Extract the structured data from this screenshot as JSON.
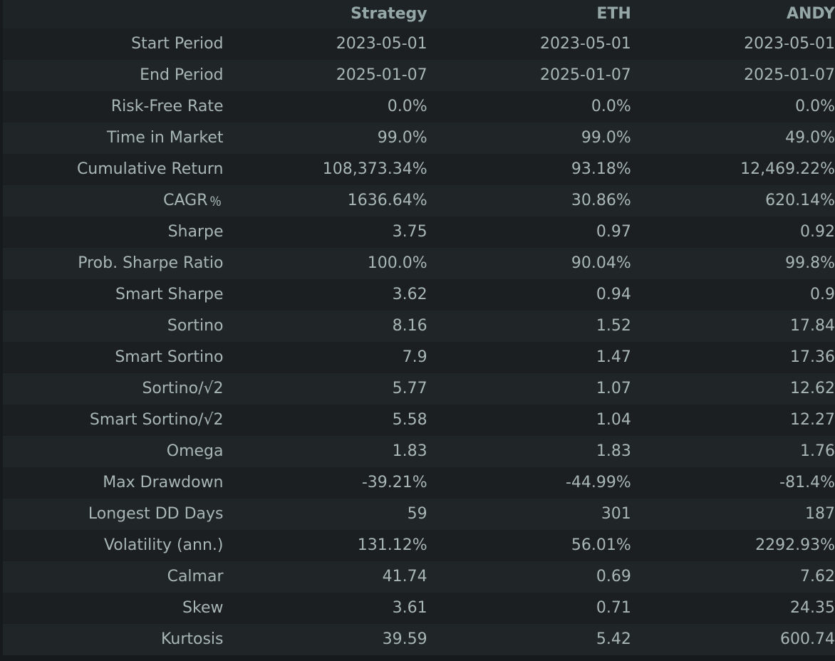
{
  "table": {
    "columns": [
      "",
      "Strategy",
      "ETH",
      "ANDY"
    ],
    "rows": [
      {
        "label": "Start Period",
        "values": [
          "2023-05-01",
          "2023-05-01",
          "2023-05-01"
        ]
      },
      {
        "label": "End Period",
        "values": [
          "2025-01-07",
          "2025-01-07",
          "2025-01-07"
        ]
      },
      {
        "label": "Risk-Free Rate",
        "values": [
          "0.0%",
          "0.0%",
          "0.0%"
        ]
      },
      {
        "label": "Time in Market",
        "values": [
          "99.0%",
          "99.0%",
          "49.0%"
        ]
      },
      {
        "label": "Cumulative Return",
        "values": [
          "108,373.34%",
          "93.18%",
          "12,469.22%"
        ]
      },
      {
        "label": "CAGR﹪",
        "values": [
          "1636.64%",
          "30.86%",
          "620.14%"
        ]
      },
      {
        "label": "Sharpe",
        "values": [
          "3.75",
          "0.97",
          "0.92"
        ]
      },
      {
        "label": "Prob. Sharpe Ratio",
        "values": [
          "100.0%",
          "90.04%",
          "99.8%"
        ]
      },
      {
        "label": "Smart Sharpe",
        "values": [
          "3.62",
          "0.94",
          "0.9"
        ]
      },
      {
        "label": "Sortino",
        "values": [
          "8.16",
          "1.52",
          "17.84"
        ]
      },
      {
        "label": "Smart Sortino",
        "values": [
          "7.9",
          "1.47",
          "17.36"
        ]
      },
      {
        "label": "Sortino/√2",
        "values": [
          "5.77",
          "1.07",
          "12.62"
        ]
      },
      {
        "label": "Smart Sortino/√2",
        "values": [
          "5.58",
          "1.04",
          "12.27"
        ]
      },
      {
        "label": "Omega",
        "values": [
          "1.83",
          "1.83",
          "1.76"
        ]
      },
      {
        "label": "Max Drawdown",
        "values": [
          "-39.21%",
          "-44.99%",
          "-81.4%"
        ]
      },
      {
        "label": "Longest DD Days",
        "values": [
          "59",
          "301",
          "187"
        ]
      },
      {
        "label": "Volatility (ann.)",
        "values": [
          "131.12%",
          "56.01%",
          "2292.93%"
        ]
      },
      {
        "label": "Calmar",
        "values": [
          "41.74",
          "0.69",
          "7.62"
        ]
      },
      {
        "label": "Skew",
        "values": [
          "3.61",
          "0.71",
          "24.35"
        ]
      },
      {
        "label": "Kurtosis",
        "values": [
          "39.59",
          "5.42",
          "600.74"
        ]
      }
    ]
  }
}
